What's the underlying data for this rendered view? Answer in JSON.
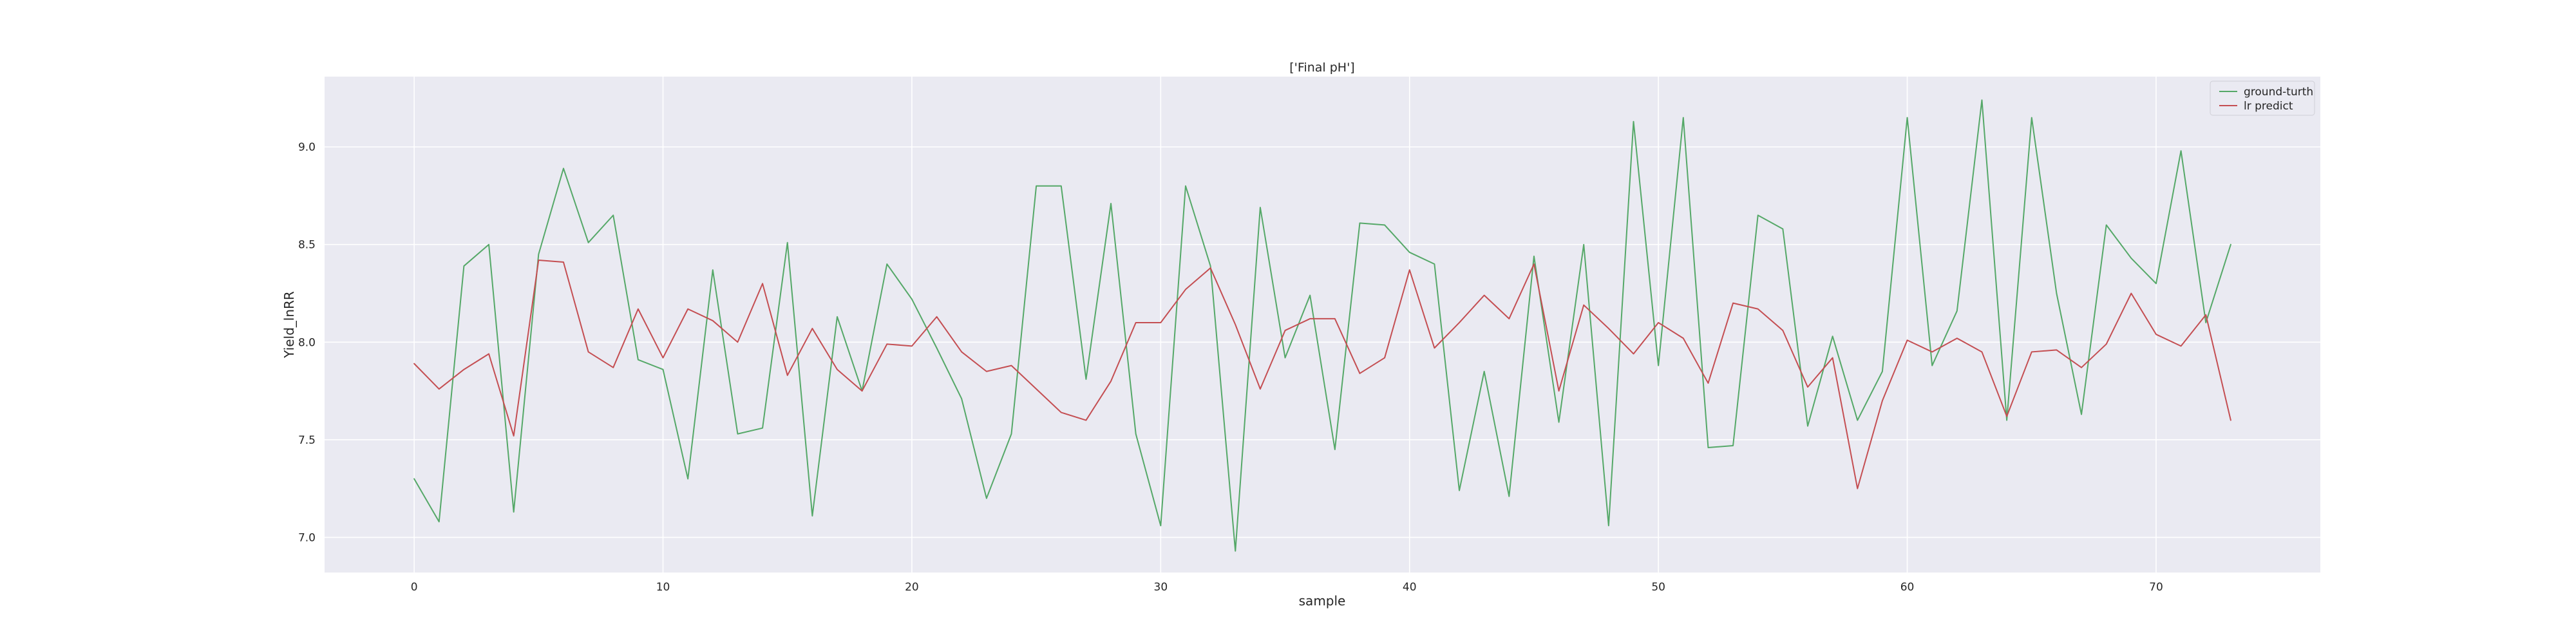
{
  "chart_data": {
    "type": "line",
    "title": "['Final pH']",
    "xlabel": "sample",
    "ylabel": "Yield_lnRR",
    "xlim": [
      -3.6,
      76.6
    ],
    "ylim": [
      6.82,
      9.36
    ],
    "xticks": [
      0,
      10,
      20,
      30,
      40,
      50,
      60,
      70
    ],
    "yticks": [
      7.0,
      7.5,
      8.0,
      8.5,
      9.0
    ],
    "xtick_labels": [
      "0",
      "10",
      "20",
      "30",
      "40",
      "50",
      "60",
      "70"
    ],
    "ytick_labels": [
      "7.0",
      "7.5",
      "8.0",
      "8.5",
      "9.0"
    ],
    "grid": true,
    "legend_position": "top-right",
    "x": [
      0,
      1,
      2,
      3,
      4,
      5,
      6,
      7,
      8,
      9,
      10,
      11,
      12,
      13,
      14,
      15,
      16,
      17,
      18,
      19,
      20,
      21,
      22,
      23,
      24,
      25,
      26,
      27,
      28,
      29,
      30,
      31,
      32,
      33,
      34,
      35,
      36,
      37,
      38,
      39,
      40,
      41,
      42,
      43,
      44,
      45,
      46,
      47,
      48,
      49,
      50,
      51,
      52,
      53,
      54,
      55,
      56,
      57,
      58,
      59,
      60,
      61,
      62,
      63,
      64,
      65,
      66,
      67,
      68,
      69,
      70,
      71,
      72,
      73
    ],
    "series": [
      {
        "name": "ground-turth",
        "color": "#55a868",
        "values": [
          7.3,
          7.08,
          8.39,
          8.5,
          7.13,
          8.45,
          8.89,
          8.51,
          8.65,
          7.91,
          7.86,
          7.3,
          8.37,
          7.53,
          7.56,
          8.51,
          7.11,
          8.13,
          7.75,
          8.4,
          8.22,
          7.97,
          7.71,
          7.2,
          7.53,
          8.8,
          8.8,
          7.81,
          8.71,
          7.53,
          7.06,
          8.8,
          8.39,
          6.93,
          8.69,
          7.92,
          8.24,
          7.45,
          8.61,
          8.6,
          8.46,
          8.4,
          7.24,
          7.85,
          7.21,
          8.44,
          7.59,
          8.5,
          7.06,
          9.13,
          7.88,
          9.15,
          7.46,
          7.47,
          8.65,
          8.58,
          7.57,
          8.03,
          7.6,
          7.85,
          9.15,
          7.88,
          8.16,
          9.24,
          7.6,
          9.15,
          8.25,
          7.63,
          8.6,
          8.43,
          8.3,
          8.98,
          8.1,
          8.5
        ]
      },
      {
        "name": "lr predict",
        "color": "#c44e52",
        "values": [
          7.89,
          7.76,
          7.86,
          7.94,
          7.52,
          8.42,
          8.41,
          7.95,
          7.87,
          8.17,
          7.92,
          8.17,
          8.11,
          8.0,
          8.3,
          7.83,
          8.07,
          7.86,
          7.75,
          7.99,
          7.98,
          8.13,
          7.95,
          7.85,
          7.88,
          7.76,
          7.64,
          7.6,
          7.8,
          8.1,
          8.1,
          8.27,
          8.38,
          8.09,
          7.76,
          8.06,
          8.12,
          8.12,
          7.84,
          7.92,
          8.37,
          7.97,
          8.1,
          8.24,
          8.12,
          8.4,
          7.75,
          8.19,
          8.07,
          7.94,
          8.1,
          8.02,
          7.79,
          8.2,
          8.17,
          8.06,
          7.77,
          7.92,
          7.25,
          7.7,
          8.01,
          7.95,
          8.02,
          7.95,
          7.62,
          7.95,
          7.96,
          7.87,
          7.99,
          8.25,
          8.04,
          7.98,
          8.14,
          7.6
        ]
      }
    ]
  }
}
